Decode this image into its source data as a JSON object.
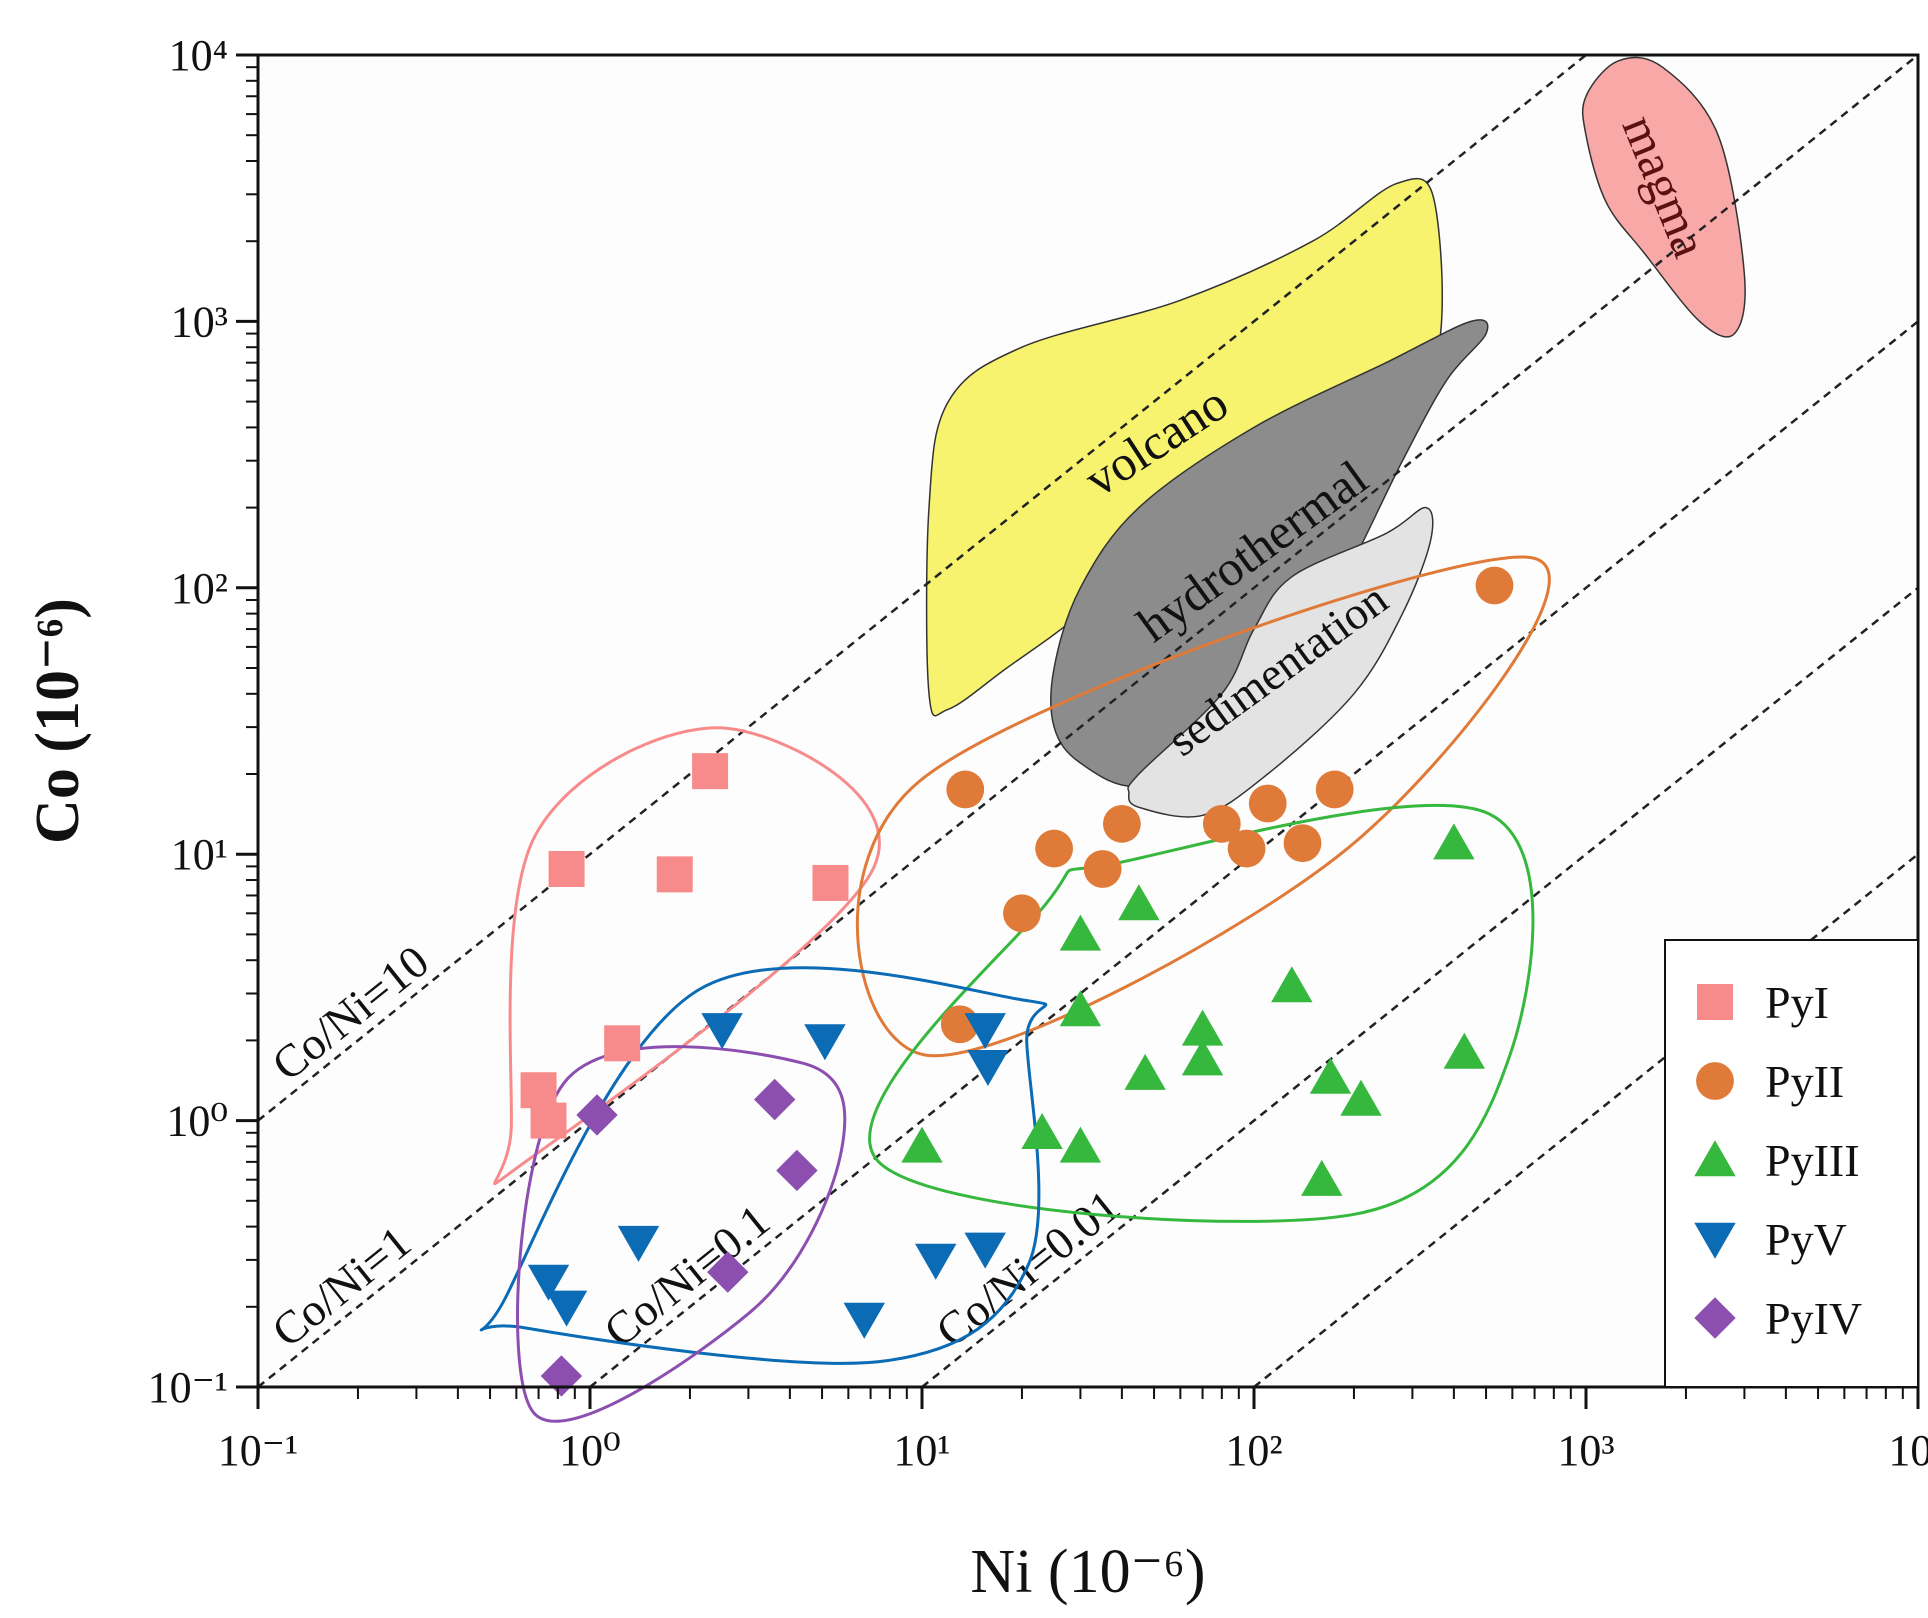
{
  "chart_data": {
    "type": "scatter",
    "xscale": "log",
    "yscale": "log",
    "xlim": [
      0.1,
      10000
    ],
    "ylim": [
      0.1,
      10000
    ],
    "xlabel": "Ni (10⁻⁶)",
    "ylabel": "Co (10⁻⁶)",
    "tick_labels": [
      "10⁻¹",
      "10⁰",
      "10¹",
      "10²",
      "10³",
      "10⁴"
    ],
    "ratio_lines": [
      {
        "ratio": 10,
        "label": "Co/Ni=10"
      },
      {
        "ratio": 1,
        "label": "Co/Ni=1"
      },
      {
        "ratio": 0.1,
        "label": "Co/Ni=0.1"
      },
      {
        "ratio": 0.01,
        "label": "Co/Ni=0.01"
      },
      {
        "ratio": 0.001,
        "label": ""
      }
    ],
    "fields": [
      {
        "name": "magma",
        "color": "#f9a8a8",
        "outline": [
          [
            1000,
            7000
          ],
          [
            1250,
            9500
          ],
          [
            1700,
            9000
          ],
          [
            2500,
            5000
          ],
          [
            3000,
            1500
          ],
          [
            2800,
            900
          ],
          [
            2200,
            1000
          ],
          [
            1500,
            1800
          ],
          [
            1150,
            2800
          ],
          [
            1000,
            5000
          ]
        ]
      },
      {
        "name": "volcano",
        "color": "#f7f36f",
        "outline": [
          [
            12,
            35
          ],
          [
            10.5,
            40
          ],
          [
            10.5,
            200
          ],
          [
            12,
            500
          ],
          [
            20,
            800
          ],
          [
            60,
            1200
          ],
          [
            150,
            2000
          ],
          [
            270,
            3300
          ],
          [
            350,
            2800
          ],
          [
            350,
            700
          ],
          [
            200,
            400
          ],
          [
            100,
            250
          ],
          [
            50,
            150
          ],
          [
            30,
            80
          ],
          [
            18,
            50
          ]
        ]
      },
      {
        "name": "hydrothermal",
        "color": "#8c8c8c",
        "outline": [
          [
            25,
            30
          ],
          [
            25,
            50
          ],
          [
            30,
            100
          ],
          [
            45,
            200
          ],
          [
            100,
            400
          ],
          [
            250,
            700
          ],
          [
            450,
            1000
          ],
          [
            500,
            900
          ],
          [
            380,
            600
          ],
          [
            280,
            300
          ],
          [
            180,
            100
          ],
          [
            120,
            50
          ],
          [
            80,
            25
          ],
          [
            45,
            18
          ],
          [
            30,
            22
          ]
        ]
      },
      {
        "name": "sedimentation",
        "color": "#e3e3e3",
        "outline": [
          [
            45,
            15
          ],
          [
            42,
            17
          ],
          [
            45,
            20
          ],
          [
            80,
            40
          ],
          [
            100,
            70
          ],
          [
            130,
            110
          ],
          [
            250,
            160
          ],
          [
            330,
            200
          ],
          [
            340,
            150
          ],
          [
            280,
            80
          ],
          [
            200,
            40
          ],
          [
            110,
            20
          ],
          [
            70,
            14
          ]
        ]
      }
    ],
    "series": [
      {
        "name": "PyI",
        "marker": "square",
        "color": "#f78b8b",
        "points": [
          [
            2.3,
            20.5
          ],
          [
            0.85,
            8.8
          ],
          [
            1.8,
            8.4
          ],
          [
            5.3,
            7.8
          ],
          [
            1.25,
            1.95
          ],
          [
            0.7,
            1.3
          ],
          [
            0.75,
            1.0
          ]
        ]
      },
      {
        "name": "PyII",
        "marker": "circle",
        "color": "#e07a38",
        "points": [
          [
            13.5,
            17.5
          ],
          [
            40,
            13
          ],
          [
            25,
            10.5
          ],
          [
            35,
            8.8
          ],
          [
            80,
            13
          ],
          [
            110,
            15.5
          ],
          [
            95,
            10.5
          ],
          [
            140,
            11
          ],
          [
            175,
            17.5
          ],
          [
            530,
            102
          ],
          [
            20,
            6
          ],
          [
            13,
            2.3
          ]
        ]
      },
      {
        "name": "PyIII",
        "marker": "triangle-up",
        "color": "#36b83e",
        "points": [
          [
            400,
            11
          ],
          [
            45,
            6.5
          ],
          [
            30,
            5
          ],
          [
            30,
            2.6
          ],
          [
            130,
            3.2
          ],
          [
            70,
            2.2
          ],
          [
            70,
            1.7
          ],
          [
            47,
            1.5
          ],
          [
            170,
            1.45
          ],
          [
            210,
            1.2
          ],
          [
            430,
            1.8
          ],
          [
            10,
            0.8
          ],
          [
            23,
            0.9
          ],
          [
            30,
            0.8
          ],
          [
            160,
            0.6
          ]
        ]
      },
      {
        "name": "PyV",
        "marker": "triangle-down",
        "color": "#0b6bb5",
        "points": [
          [
            2.5,
            2.2
          ],
          [
            5.1,
            2.0
          ],
          [
            15.5,
            2.2
          ],
          [
            15.8,
            1.6
          ],
          [
            0.75,
            0.25
          ],
          [
            0.85,
            0.2
          ],
          [
            1.4,
            0.35
          ],
          [
            11,
            0.3
          ],
          [
            15.5,
            0.33
          ],
          [
            6.7,
            0.18
          ]
        ]
      },
      {
        "name": "PyIV",
        "marker": "diamond",
        "color": "#8c4fb0",
        "points": [
          [
            1.05,
            1.05
          ],
          [
            3.6,
            1.2
          ],
          [
            4.2,
            0.65
          ],
          [
            2.6,
            0.27
          ],
          [
            0.82,
            0.11
          ]
        ]
      }
    ],
    "enclosures": [
      {
        "series": "PyI",
        "color": "#f78b8b"
      },
      {
        "series": "PyII",
        "color": "#e07a38"
      },
      {
        "series": "PyIII",
        "color": "#36b83e"
      },
      {
        "series": "PyV",
        "color": "#0b6bb5"
      },
      {
        "series": "PyIV",
        "color": "#8c4fb0"
      }
    ],
    "legend": {
      "placement": "bottom-right",
      "entries": [
        "PyI",
        "PyII",
        "PyIII",
        "PyV",
        "PyIV"
      ]
    }
  }
}
